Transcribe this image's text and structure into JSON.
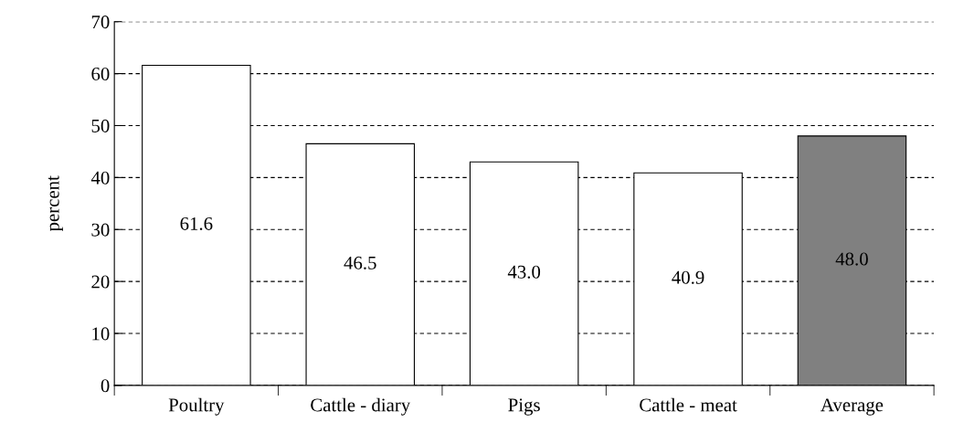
{
  "chart_data": {
    "type": "bar",
    "ylabel": "percent",
    "categories": [
      "Poultry",
      "Cattle - diary",
      "Pigs",
      "Cattle - meat",
      "Average"
    ],
    "values": [
      61.6,
      46.5,
      43.0,
      40.9,
      48.0
    ],
    "value_labels": [
      "61.6",
      "46.5",
      "43.0",
      "40.9",
      "48.0"
    ],
    "colors": [
      "#ffffff",
      "#ffffff",
      "#ffffff",
      "#ffffff",
      "#808080"
    ],
    "ylim": [
      0,
      70
    ],
    "yticks": [
      0,
      10,
      20,
      30,
      40,
      50,
      60,
      70
    ],
    "grid": "y"
  }
}
